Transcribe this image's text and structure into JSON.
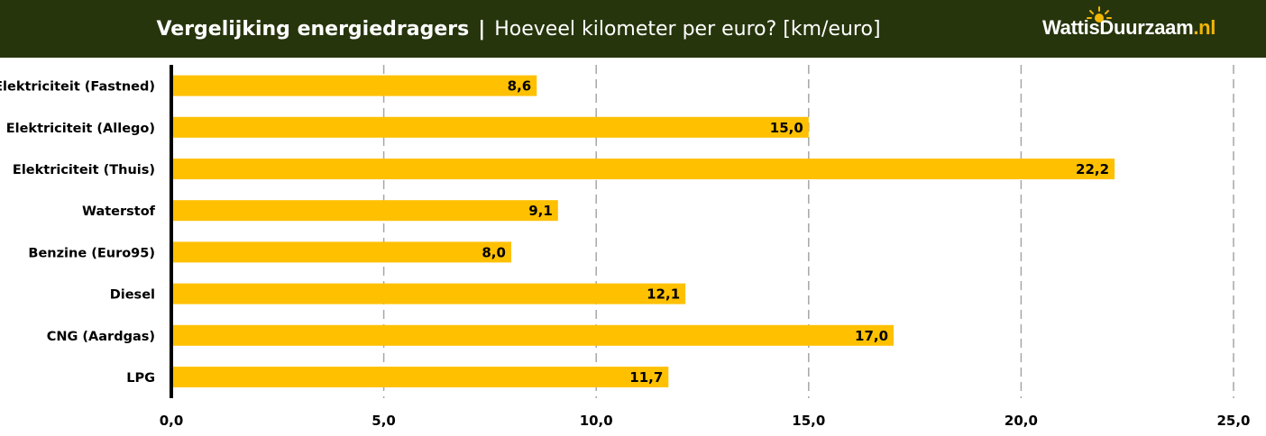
{
  "header": {
    "title_bold": "Vergelijking energiedragers",
    "separator": "|",
    "title_rest": "Hoeveel kilometer per euro? [km/euro]",
    "logo_main": "WattisDuurzaam",
    "logo_suffix": ".nl"
  },
  "colors": {
    "header_bg": "#27350d",
    "bar": "#ffc000",
    "grid": "#a6a6a6",
    "logo_accent": "#f2b705"
  },
  "chart_data": {
    "type": "bar",
    "orientation": "horizontal",
    "categories": [
      "Elektriciteit (Fastned)",
      "Elektriciteit (Allego)",
      "Elektriciteit (Thuis)",
      "Waterstof",
      "Benzine (Euro95)",
      "Diesel",
      "CNG (Aardgas)",
      "LPG"
    ],
    "values": [
      8.6,
      15.0,
      22.2,
      9.1,
      8.0,
      12.1,
      17.0,
      11.7
    ],
    "value_labels": [
      "8,6",
      "15,0",
      "22,2",
      "9,1",
      "8,0",
      "12,1",
      "17,0",
      "11,7"
    ],
    "xlim": [
      0,
      25
    ],
    "xticks": [
      0,
      5,
      10,
      15,
      20,
      25
    ],
    "xtick_labels": [
      "0,0",
      "5,0",
      "10,0",
      "15,0",
      "20,0",
      "25,0"
    ],
    "grid": true,
    "grid_style": "dashed vertical",
    "legend": "none"
  }
}
